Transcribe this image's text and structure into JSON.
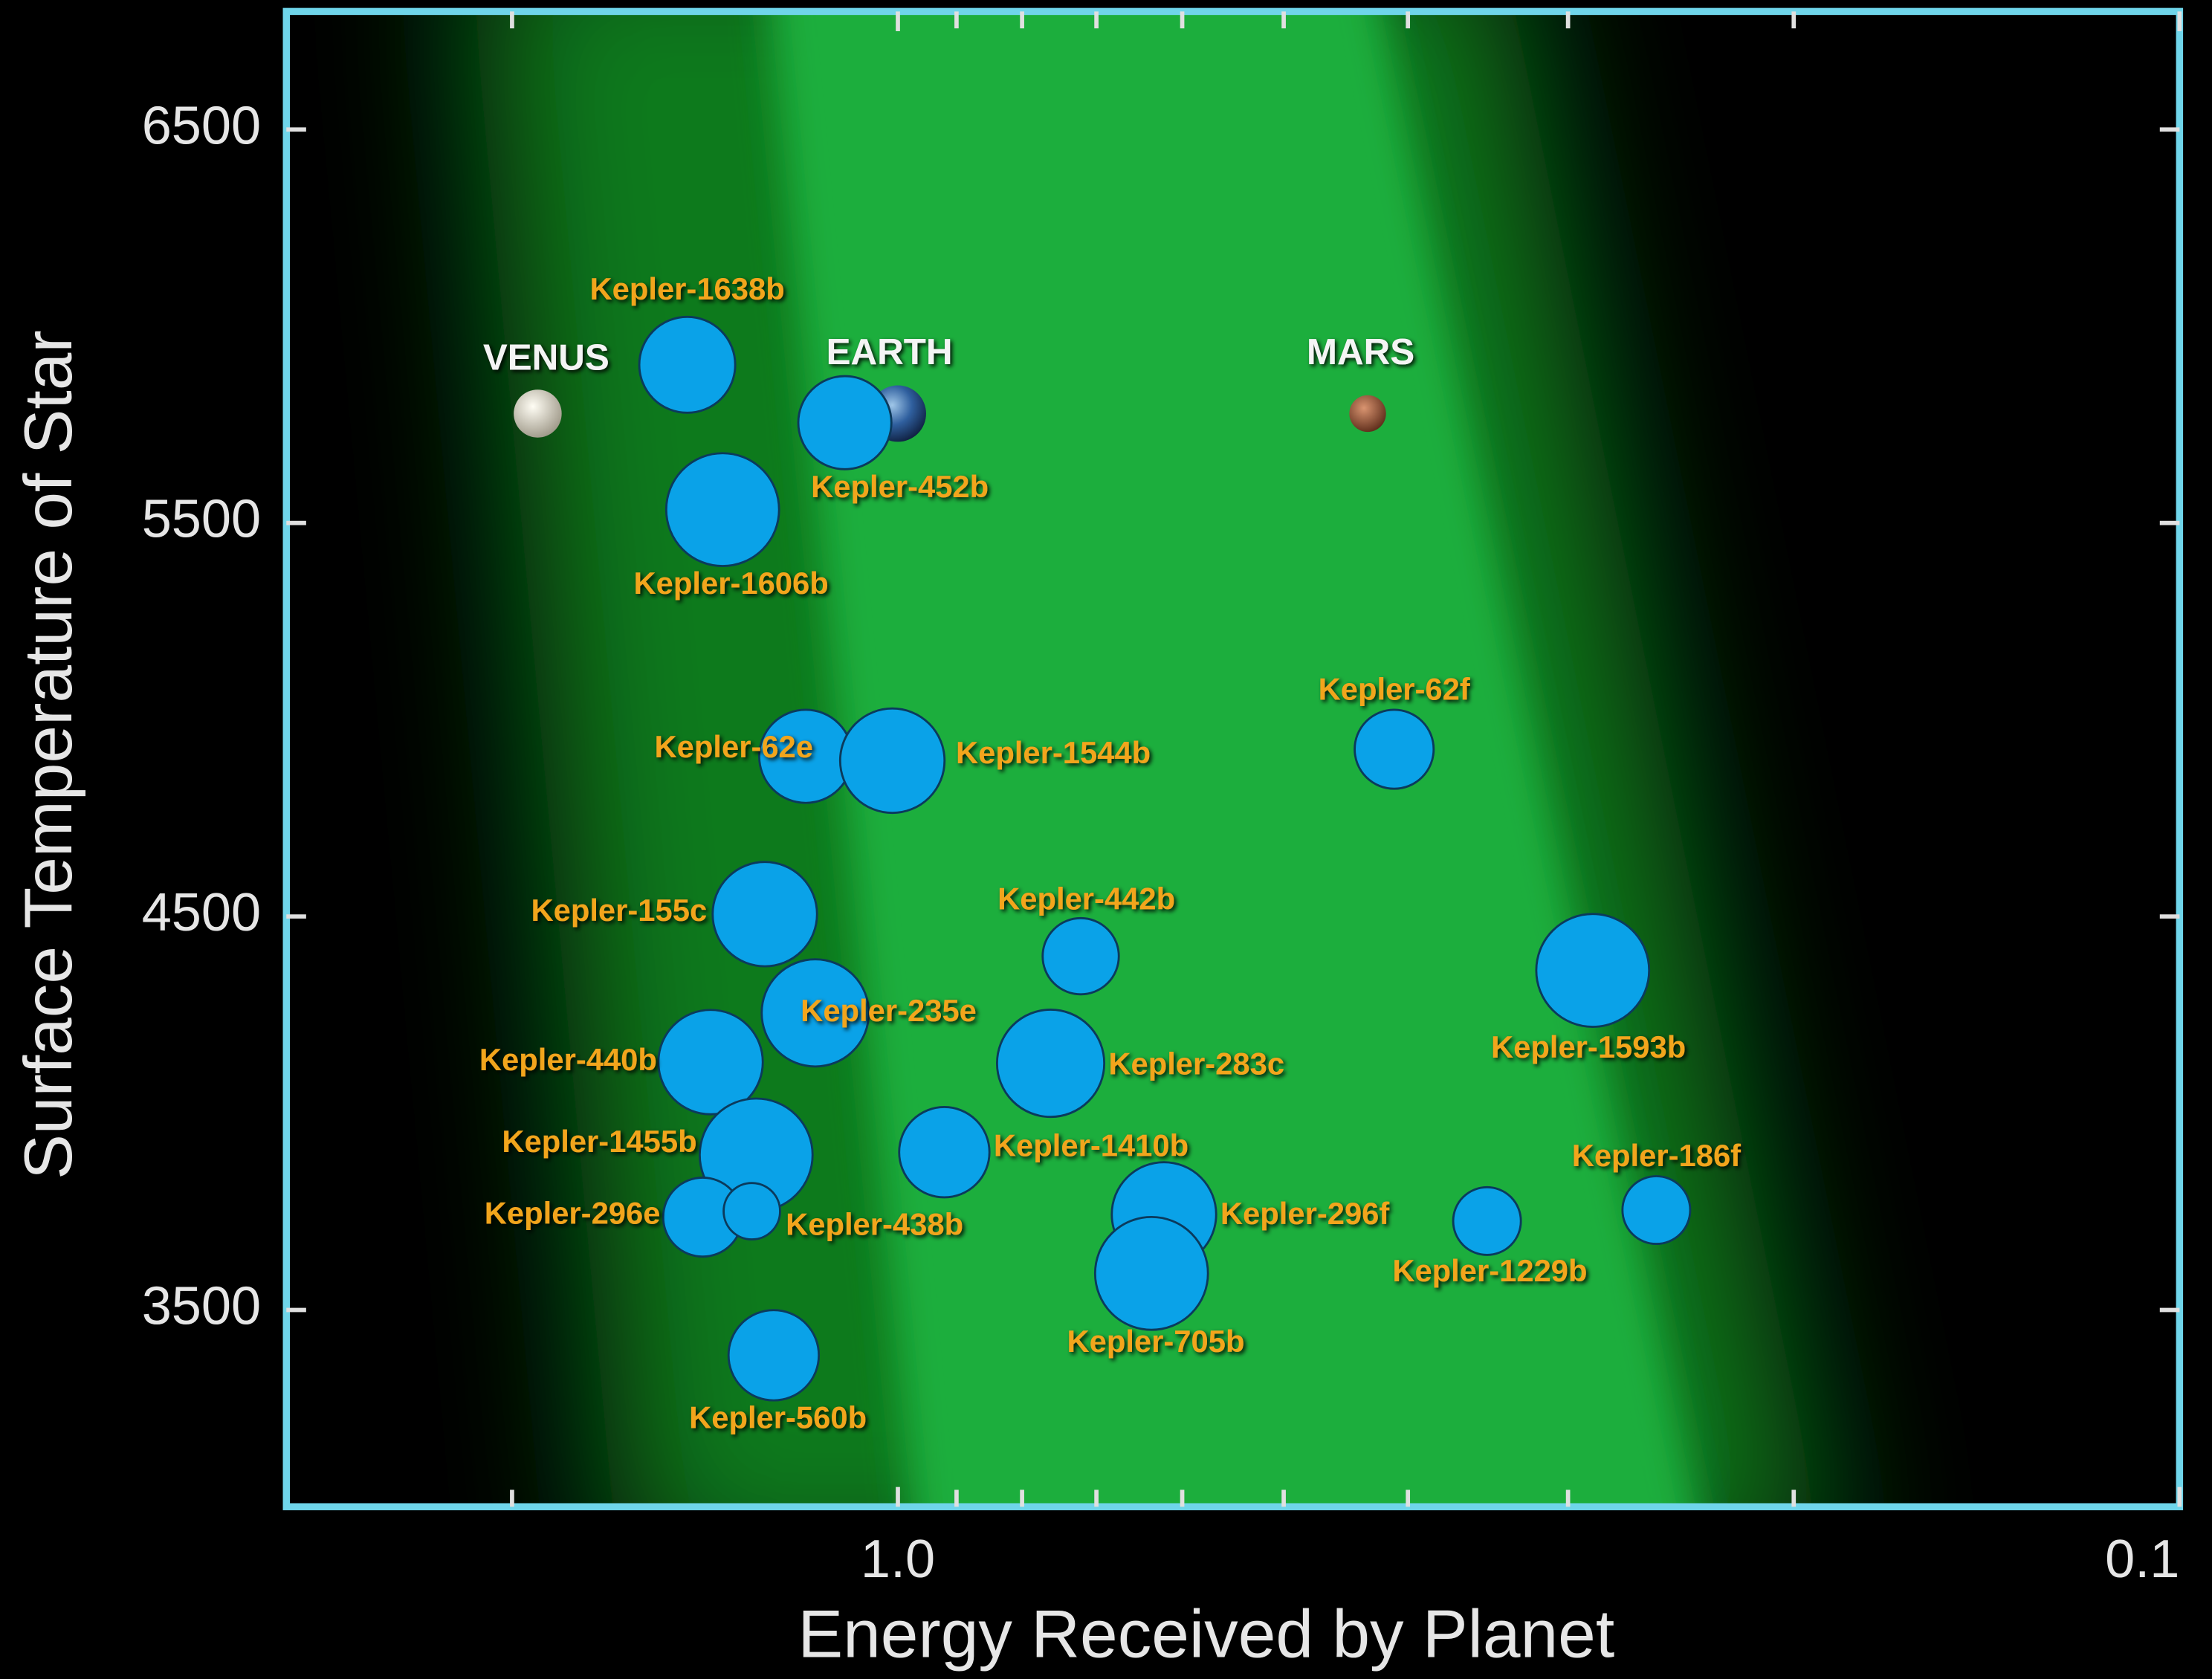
{
  "chart_data": {
    "type": "scatter",
    "xlabel": "Energy Received by Planet",
    "ylabel": "Surface Temperature of Star",
    "xscale": "log",
    "xlim": [
      3,
      0.1
    ],
    "xticks": [
      {
        "value": 1,
        "label": "1.0"
      },
      0.1
    ],
    "xminorticks": [
      2,
      0.9,
      0.8,
      0.7,
      0.6,
      0.5,
      0.4,
      0.3,
      0.2
    ],
    "ylim": [
      3000,
      6800
    ],
    "yticks": [
      3500,
      4500,
      5500,
      6500
    ],
    "series": [
      {
        "colors": [
          "#d9d5c7",
          "#3a6fb0",
          "#a0583a"
        ],
        "labels": [
          "VENUS",
          "EARTH",
          "MARS"
        ],
        "x": [
          1.91,
          1.0,
          0.43
        ],
        "values": [
          5778,
          5778,
          5778
        ],
        "sizes": [
          17,
          20,
          13
        ]
      },
      {
        "color": "#0aa2e8",
        "labels": [
          "Kepler-1638b",
          "Kepler-452b",
          "Kepler-1606b",
          "Kepler-62e",
          "Kepler-1544b",
          "Kepler-62f",
          "Kepler-155c",
          "Kepler-442b",
          "Kepler-1593b",
          "Kepler-235e",
          "Kepler-440b",
          "Kepler-283c",
          "Kepler-1455b",
          "Kepler-1410b",
          "Kepler-296e",
          "Kepler-438b",
          "Kepler-296f",
          "Kepler-1229b",
          "Kepler-186f",
          "Kepler-705b",
          "Kepler-560b"
        ],
        "x": [
          1.46,
          1.1,
          1.37,
          1.18,
          1.01,
          0.41,
          1.27,
          0.72,
          0.287,
          1.16,
          1.4,
          0.76,
          1.29,
          0.92,
          1.42,
          1.3,
          0.62,
          0.347,
          0.256,
          0.634,
          1.25
        ],
        "values": [
          5902,
          5755,
          5534,
          4907,
          4896,
          4925,
          4506,
          4399,
          4363,
          4255,
          4130,
          4127,
          3894,
          3901,
          3736,
          3751,
          3743,
          3726,
          3754,
          3593,
          3385
        ],
        "sizes": [
          34,
          33,
          40,
          33,
          37,
          28,
          37,
          27,
          40,
          38,
          37,
          38,
          40,
          32,
          28,
          20,
          37,
          24,
          24,
          40,
          32
        ]
      }
    ]
  }
}
